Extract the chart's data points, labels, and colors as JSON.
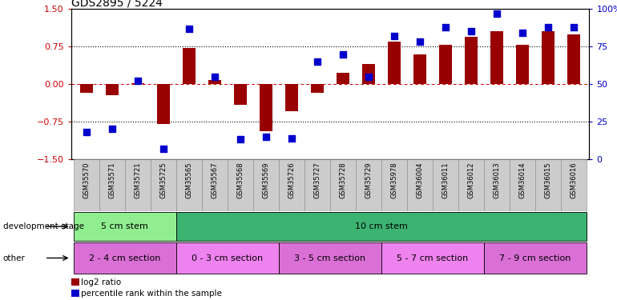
{
  "title": "GDS2895 / 5224",
  "samples": [
    "GSM35570",
    "GSM35571",
    "GSM35721",
    "GSM35725",
    "GSM35565",
    "GSM35567",
    "GSM35568",
    "GSM35569",
    "GSM35726",
    "GSM35727",
    "GSM35728",
    "GSM35729",
    "GSM35978",
    "GSM36004",
    "GSM36011",
    "GSM36012",
    "GSM36013",
    "GSM36014",
    "GSM36015",
    "GSM36016"
  ],
  "log2_ratio": [
    -0.18,
    -0.22,
    0.02,
    -0.8,
    0.72,
    0.08,
    -0.42,
    -0.95,
    -0.55,
    -0.18,
    0.22,
    0.4,
    0.85,
    0.6,
    0.78,
    0.95,
    1.05,
    0.78,
    1.05,
    1.0
  ],
  "percentile": [
    18,
    20,
    52,
    7,
    87,
    55,
    13,
    15,
    14,
    65,
    70,
    55,
    82,
    78,
    88,
    85,
    97,
    84,
    88,
    88
  ],
  "bar_color": "#990000",
  "dot_color": "#0000cc",
  "ylim_left": [
    -1.5,
    1.5
  ],
  "ylim_right": [
    0,
    100
  ],
  "yticks_left": [
    -1.5,
    -0.75,
    0.0,
    0.75,
    1.5
  ],
  "yticks_right": [
    0,
    25,
    50,
    75,
    100
  ],
  "hlines": [
    -0.75,
    0.0,
    0.75
  ],
  "hline_styles": [
    "dotted",
    "dashed",
    "dotted"
  ],
  "hline_colors": [
    "black",
    "#cc0000",
    "black"
  ],
  "development_stage_groups": [
    {
      "label": "5 cm stem",
      "start": 0,
      "end": 4,
      "color": "#90ee90"
    },
    {
      "label": "10 cm stem",
      "start": 4,
      "end": 20,
      "color": "#3cb371"
    }
  ],
  "other_groups": [
    {
      "label": "2 - 4 cm section",
      "start": 0,
      "end": 4,
      "color": "#da70d6"
    },
    {
      "label": "0 - 3 cm section",
      "start": 4,
      "end": 8,
      "color": "#ee82ee"
    },
    {
      "label": "3 - 5 cm section",
      "start": 8,
      "end": 12,
      "color": "#da70d6"
    },
    {
      "label": "5 - 7 cm section",
      "start": 12,
      "end": 16,
      "color": "#ee82ee"
    },
    {
      "label": "7 - 9 cm section",
      "start": 16,
      "end": 20,
      "color": "#da70d6"
    }
  ],
  "legend_items": [
    {
      "label": "log2 ratio",
      "color": "#990000"
    },
    {
      "label": "percentile rank within the sample",
      "color": "#0000cc"
    }
  ],
  "axis_color_left": "#cc0000",
  "axis_color_right": "#0000cc",
  "background_color": "#ffffff",
  "bar_width": 0.5,
  "dot_size": 35,
  "left_label": "development stage",
  "right_label": "other"
}
